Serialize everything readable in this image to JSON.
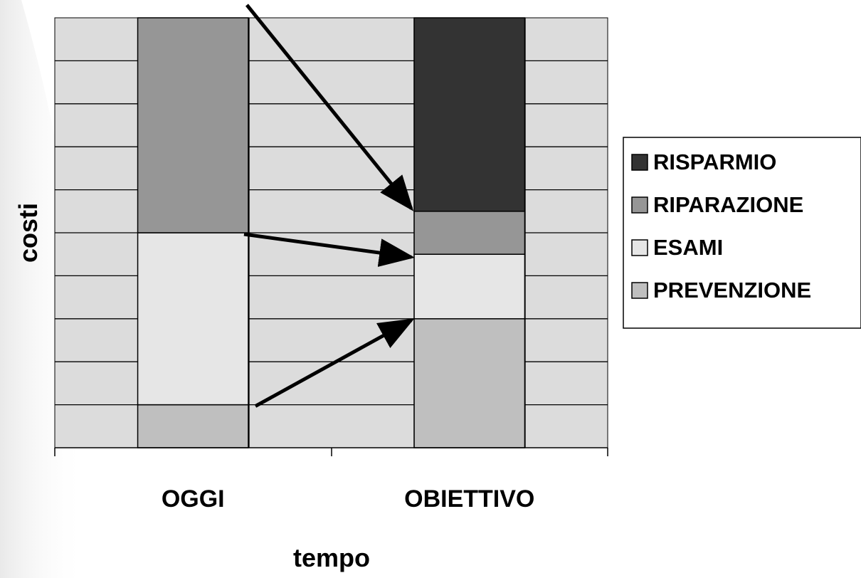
{
  "chart_data": {
    "type": "bar",
    "stacked": true,
    "categories": [
      "OGGI",
      "OBIETTIVO"
    ],
    "series": [
      {
        "name": "PREVENZIONE",
        "values": [
          1,
          3
        ],
        "color": "#bfbfbf"
      },
      {
        "name": "ESAMI",
        "values": [
          4,
          1.5
        ],
        "color": "#e6e6e6"
      },
      {
        "name": "RIPARAZIONE",
        "values": [
          5,
          1
        ],
        "color": "#969696"
      },
      {
        "name": "RISPARMIO",
        "values": [
          0,
          4.5
        ],
        "color": "#333333"
      }
    ],
    "legend_order": [
      "RISPARMIO",
      "RIPARAZIONE",
      "ESAMI",
      "PREVENZIONE"
    ],
    "xlabel": "tempo",
    "ylabel": "costi",
    "ylim": [
      0,
      10
    ],
    "grid": true,
    "legend_position": "right",
    "plot_background": "#dcdcdc",
    "annotations": "arrows linking the OGGI segments to the OBIETTIVO segments"
  }
}
